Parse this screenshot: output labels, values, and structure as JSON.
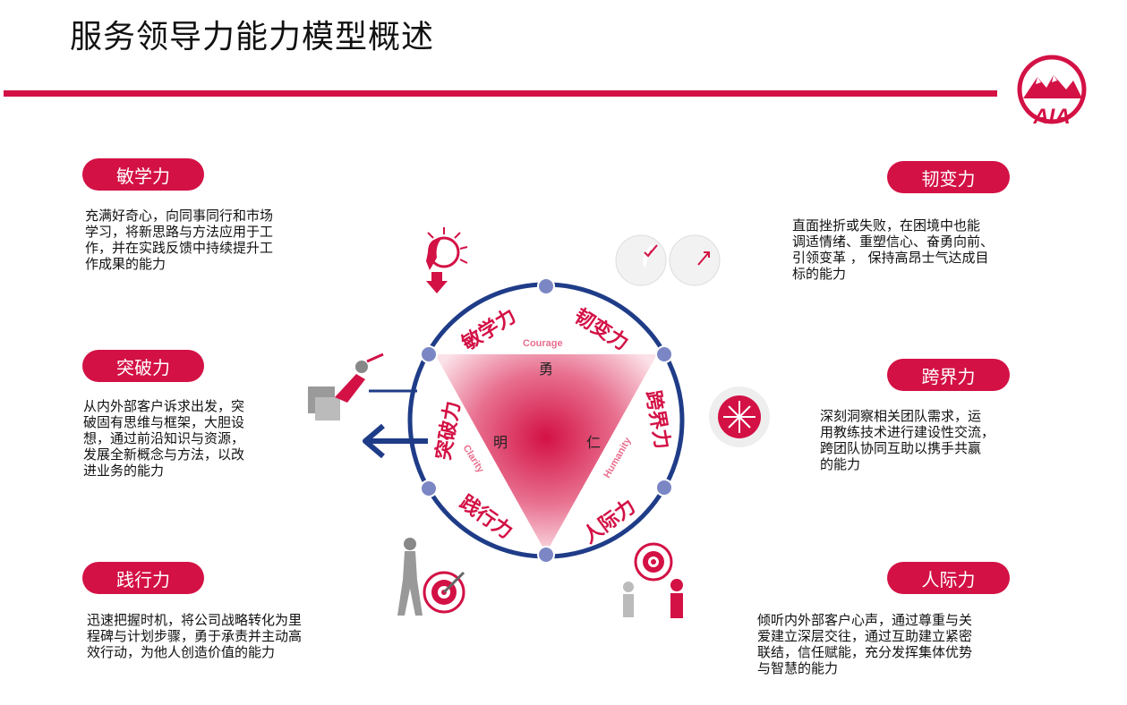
{
  "title": "服务领导力能力模型概述",
  "colors": {
    "brand_red": "#d31145",
    "navy": "#1f3c88",
    "node": "#7b86c4"
  },
  "logo_text": "AIA",
  "cards": [
    {
      "id": "minxue",
      "label": "敏学力",
      "text": "充满好奇心，向同事同行和市场\n学习，将新思路与方法应用于工\n作，并在实践反馈中持续提升工\n作成果的能力"
    },
    {
      "id": "tupo",
      "label": "突破力",
      "text": "从内外部客户诉求出发，突\n破固有思维与框架，大胆设\n想，通过前沿知识与资源，\n发展全新概念与方法，以改\n进业务的能力"
    },
    {
      "id": "jianxing",
      "label": "践行力",
      "text": "迅速把握时机，将公司战略转化为里\n程碑与计划步骤，勇于承责并主动高\n效行动，为他人创造价值的能力"
    },
    {
      "id": "renbian",
      "label": "韧变力",
      "text": "直面挫折或失败，在困境中也能\n调适情绪、重塑信心、奋勇向前、\n引领变革 ， 保持高昂士气达成目\n标的能力"
    },
    {
      "id": "kuajie",
      "label": "跨界力",
      "text": "深刻洞察相关团队需求，运\n用教练技术进行建设性交流，\n跨团队协同互助以携手共赢\n的能力"
    },
    {
      "id": "renji",
      "label": "人际力",
      "text": "倾听内外部客户心声，通过尊重与关\n爱建立深层交往，通过互助建立紧密\n联结，信任赋能，充分发挥集体优势\n与智慧的能力"
    }
  ],
  "ring": {
    "labels": [
      "敏学力",
      "韧变力",
      "跨界力",
      "人际力",
      "践行力",
      "突破力"
    ]
  },
  "triangle": {
    "center_labels": {
      "top": "勇",
      "left": "明",
      "right": "仁"
    },
    "en_labels": {
      "top": "Courage",
      "left": "Clarity",
      "right": "Humanity"
    }
  }
}
